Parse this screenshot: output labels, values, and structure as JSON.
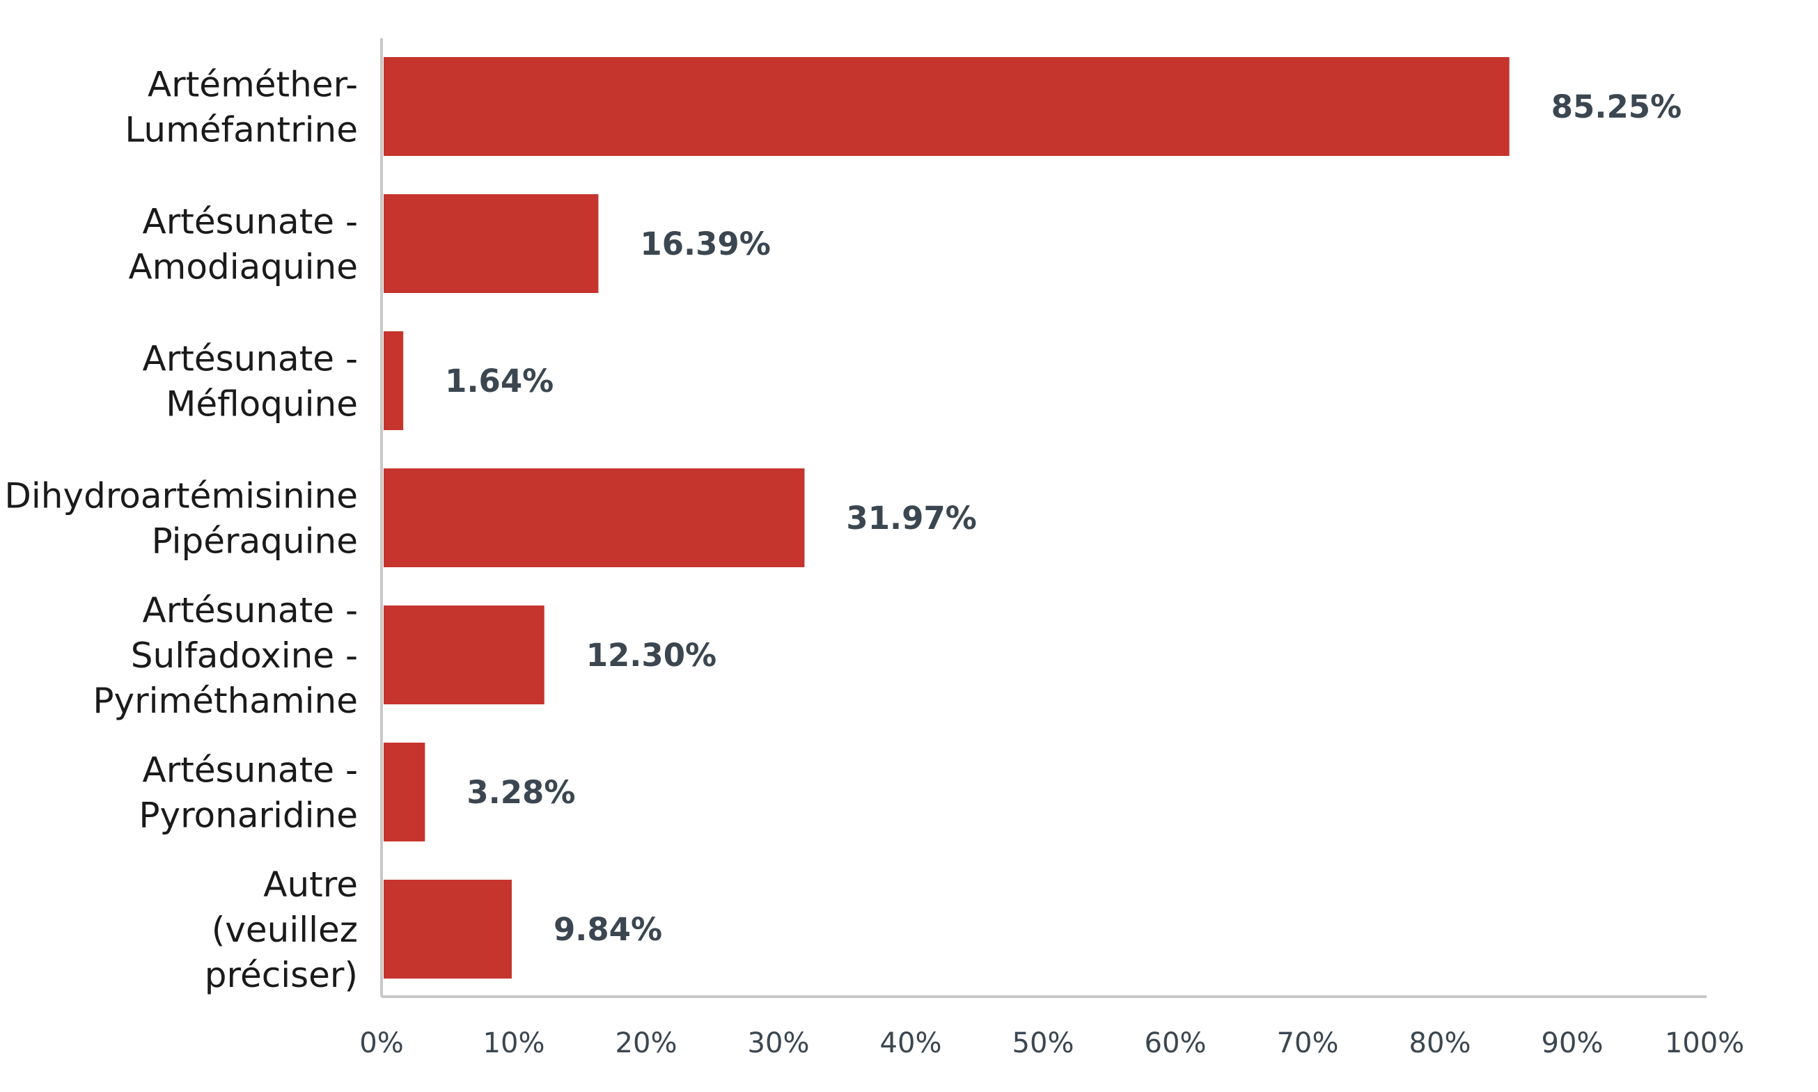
{
  "chart_data": {
    "type": "bar",
    "orientation": "horizontal",
    "categories": [
      [
        "Artéméther-",
        "Luméfantrine"
      ],
      [
        "Artésunate -",
        "Amodiaquine"
      ],
      [
        "Artésunate -",
        "Méfloquine"
      ],
      [
        "Dihydroartémisinine",
        "Pipéraquine"
      ],
      [
        "Artésunate -",
        "Sulfadoxine -",
        "Pyriméthamine"
      ],
      [
        "Artésunate -",
        "Pyronaridine"
      ],
      [
        "Autre",
        "(veuillez",
        "préciser)"
      ]
    ],
    "values": [
      85.25,
      16.39,
      1.64,
      31.97,
      12.3,
      3.28,
      9.84
    ],
    "data_labels": [
      "85.25%",
      "16.39%",
      "1.64%",
      "31.97%",
      "12.30%",
      "3.28%",
      "9.84%"
    ],
    "x_ticks": [
      "0%",
      "10%",
      "20%",
      "30%",
      "40%",
      "50%",
      "60%",
      "70%",
      "80%",
      "90%",
      "100%"
    ],
    "xlim": [
      0,
      100
    ],
    "grid": false,
    "colors": {
      "bar": "#c5342d",
      "axis": "#c8c8c8",
      "data_label": "#3b4650",
      "category_label": "#1a1a1a"
    }
  }
}
